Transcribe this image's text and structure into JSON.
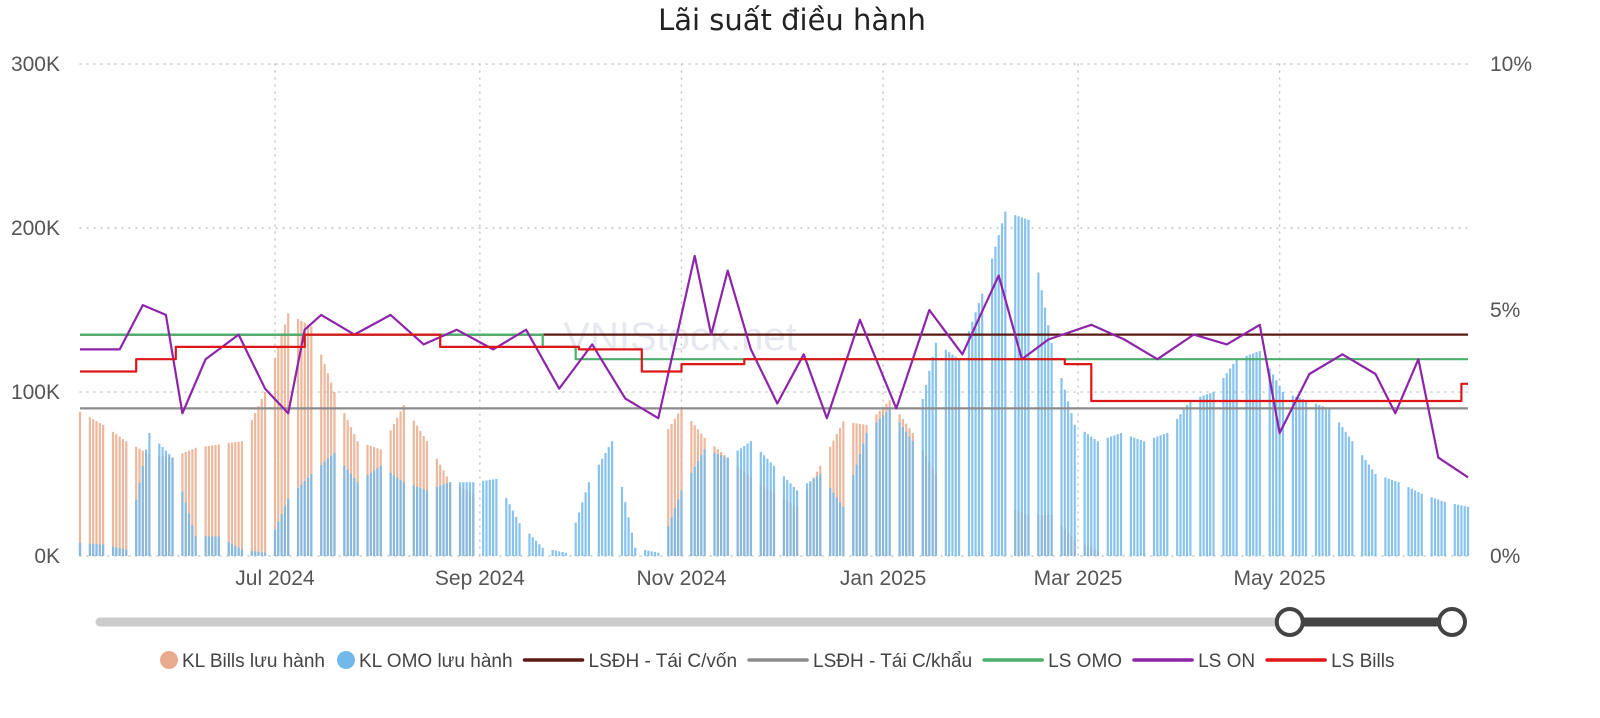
{
  "chart_data": {
    "type": "bar",
    "title": "Lãi suất điều hành",
    "watermark": "VNIStock.net",
    "y_left": {
      "ticks": [
        "0K",
        "100K",
        "200K",
        "300K"
      ],
      "ylim": [
        0,
        300000
      ]
    },
    "y_right": {
      "ticks": [
        "0%",
        "5%",
        "10%"
      ],
      "ylim": [
        0,
        10
      ]
    },
    "x_ticks": [
      {
        "date": "2024-07-01",
        "label": "Jul 2024"
      },
      {
        "date": "2024-09-01",
        "label": "Sep 2024"
      },
      {
        "date": "2024-11-01",
        "label": "Nov 2024"
      },
      {
        "date": "2025-01-01",
        "label": "Jan 2025"
      },
      {
        "date": "2025-03-01",
        "label": "Mar 2025"
      },
      {
        "date": "2025-05-01",
        "label": "May 2025"
      }
    ],
    "x_range": [
      "2024-05-03",
      "2025-06-27"
    ],
    "grid": true,
    "legend_position": "bottom",
    "colors": {
      "bills": "#e9ab8d",
      "omo": "#73b8ea",
      "lsdh_tai_cvon": "#5c1a12",
      "lsdh_tai_ckhau": "#8c8c8c",
      "ls_omo": "#4caf6a",
      "ls_on": "#8e24aa",
      "ls_bills": "#dd1717",
      "slider_track": "#cccccc",
      "slider_active": "#444444"
    },
    "bar_series": [
      {
        "name": "KL Bills lưu hành",
        "points": [
          [
            "2024-05-03",
            88000
          ],
          [
            "2024-05-10",
            80000
          ],
          [
            "2024-05-17",
            70000
          ],
          [
            "2024-05-24",
            62000
          ],
          [
            "2024-05-31",
            60000
          ],
          [
            "2024-06-07",
            66000
          ],
          [
            "2024-06-14",
            68000
          ],
          [
            "2024-06-21",
            70000
          ],
          [
            "2024-06-28",
            100000
          ],
          [
            "2024-07-05",
            148000
          ],
          [
            "2024-07-12",
            140000
          ],
          [
            "2024-07-19",
            100000
          ],
          [
            "2024-07-26",
            70000
          ],
          [
            "2024-08-02",
            65000
          ],
          [
            "2024-08-09",
            92000
          ],
          [
            "2024-08-16",
            70000
          ],
          [
            "2024-08-23",
            45000
          ],
          [
            "2024-08-30",
            38000
          ],
          [
            "2024-10-25",
            68000
          ],
          [
            "2024-11-01",
            90000
          ],
          [
            "2024-11-08",
            72000
          ],
          [
            "2024-11-15",
            60000
          ],
          [
            "2024-11-22",
            48000
          ],
          [
            "2024-11-29",
            38000
          ],
          [
            "2024-12-06",
            30000
          ],
          [
            "2024-12-13",
            55000
          ],
          [
            "2024-12-20",
            82000
          ],
          [
            "2024-12-27",
            80000
          ],
          [
            "2025-01-03",
            95000
          ],
          [
            "2025-01-10",
            75000
          ],
          [
            "2025-01-17",
            50000
          ],
          [
            "2025-02-07",
            30000
          ],
          [
            "2025-02-14",
            25000
          ],
          [
            "2025-02-21",
            25000
          ],
          [
            "2025-02-28",
            10000
          ],
          [
            "2025-03-07",
            3000
          ]
        ]
      },
      {
        "name": "KL OMO lưu hành",
        "points": [
          [
            "2024-05-03",
            8000
          ],
          [
            "2024-05-10",
            7000
          ],
          [
            "2024-05-17",
            4000
          ],
          [
            "2024-05-24",
            75000
          ],
          [
            "2024-05-31",
            60000
          ],
          [
            "2024-06-07",
            12000
          ],
          [
            "2024-06-14",
            12000
          ],
          [
            "2024-06-21",
            4000
          ],
          [
            "2024-06-28",
            2000
          ],
          [
            "2024-07-05",
            35000
          ],
          [
            "2024-07-12",
            50000
          ],
          [
            "2024-07-19",
            63000
          ],
          [
            "2024-07-26",
            45000
          ],
          [
            "2024-08-02",
            55000
          ],
          [
            "2024-08-09",
            45000
          ],
          [
            "2024-08-16",
            40000
          ],
          [
            "2024-08-23",
            45000
          ],
          [
            "2024-08-30",
            45000
          ],
          [
            "2024-09-06",
            47000
          ],
          [
            "2024-09-13",
            20000
          ],
          [
            "2024-09-20",
            5000
          ],
          [
            "2024-09-27",
            2000
          ],
          [
            "2024-10-04",
            45000
          ],
          [
            "2024-10-11",
            70000
          ],
          [
            "2024-10-18",
            5000
          ],
          [
            "2024-10-25",
            2000
          ],
          [
            "2024-11-01",
            40000
          ],
          [
            "2024-11-08",
            65000
          ],
          [
            "2024-11-15",
            60000
          ],
          [
            "2024-11-22",
            70000
          ],
          [
            "2024-11-29",
            55000
          ],
          [
            "2024-12-06",
            40000
          ],
          [
            "2024-12-13",
            50000
          ],
          [
            "2024-12-20",
            30000
          ],
          [
            "2024-12-27",
            75000
          ],
          [
            "2025-01-03",
            90000
          ],
          [
            "2025-01-10",
            70000
          ],
          [
            "2025-01-17",
            130000
          ],
          [
            "2025-01-24",
            120000
          ],
          [
            "2025-01-31",
            160000
          ],
          [
            "2025-02-07",
            210000
          ],
          [
            "2025-02-14",
            205000
          ],
          [
            "2025-02-21",
            130000
          ],
          [
            "2025-02-28",
            80000
          ],
          [
            "2025-03-07",
            70000
          ],
          [
            "2025-03-14",
            75000
          ],
          [
            "2025-03-21",
            70000
          ],
          [
            "2025-03-28",
            75000
          ],
          [
            "2025-04-04",
            95000
          ],
          [
            "2025-04-11",
            100000
          ],
          [
            "2025-04-18",
            120000
          ],
          [
            "2025-04-25",
            125000
          ],
          [
            "2025-05-02",
            100000
          ],
          [
            "2025-05-09",
            95000
          ],
          [
            "2025-05-16",
            90000
          ],
          [
            "2025-05-23",
            70000
          ],
          [
            "2025-05-30",
            50000
          ],
          [
            "2025-06-06",
            45000
          ],
          [
            "2025-06-13",
            38000
          ],
          [
            "2025-06-20",
            33000
          ],
          [
            "2025-06-27",
            30000
          ]
        ]
      }
    ],
    "line_series": [
      {
        "name": "LSĐH - Tái C/vốn",
        "points": [
          [
            "2024-05-03",
            4.5
          ],
          [
            "2025-06-27",
            4.5
          ]
        ]
      },
      {
        "name": "LSĐH - Tái C/khẩu",
        "points": [
          [
            "2024-05-03",
            3.0
          ],
          [
            "2025-06-27",
            3.0
          ]
        ]
      },
      {
        "name": "LS OMO",
        "step": true,
        "points": [
          [
            "2024-05-03",
            4.5
          ],
          [
            "2024-09-20",
            4.25
          ],
          [
            "2024-09-30",
            4.0
          ],
          [
            "2025-06-27",
            4.0
          ]
        ]
      },
      {
        "name": "LS ON",
        "points": [
          [
            "2024-05-03",
            4.2
          ],
          [
            "2024-05-15",
            4.2
          ],
          [
            "2024-05-22",
            5.1
          ],
          [
            "2024-05-29",
            4.9
          ],
          [
            "2024-06-03",
            2.9
          ],
          [
            "2024-06-10",
            4.0
          ],
          [
            "2024-06-20",
            4.5
          ],
          [
            "2024-06-28",
            3.4
          ],
          [
            "2024-07-05",
            2.9
          ],
          [
            "2024-07-10",
            4.6
          ],
          [
            "2024-07-15",
            4.9
          ],
          [
            "2024-07-25",
            4.5
          ],
          [
            "2024-08-05",
            4.9
          ],
          [
            "2024-08-15",
            4.3
          ],
          [
            "2024-08-25",
            4.6
          ],
          [
            "2024-09-05",
            4.2
          ],
          [
            "2024-09-15",
            4.6
          ],
          [
            "2024-09-25",
            3.4
          ],
          [
            "2024-10-05",
            4.3
          ],
          [
            "2024-10-15",
            3.2
          ],
          [
            "2024-10-25",
            2.8
          ],
          [
            "2024-11-05",
            6.1
          ],
          [
            "2024-11-10",
            4.5
          ],
          [
            "2024-11-15",
            5.8
          ],
          [
            "2024-11-22",
            4.2
          ],
          [
            "2024-11-30",
            3.1
          ],
          [
            "2024-12-08",
            4.1
          ],
          [
            "2024-12-15",
            2.8
          ],
          [
            "2024-12-25",
            4.8
          ],
          [
            "2025-01-05",
            3.0
          ],
          [
            "2025-01-15",
            5.0
          ],
          [
            "2025-01-25",
            4.1
          ],
          [
            "2025-02-05",
            5.7
          ],
          [
            "2025-02-12",
            4.0
          ],
          [
            "2025-02-20",
            4.4
          ],
          [
            "2025-03-05",
            4.7
          ],
          [
            "2025-03-15",
            4.4
          ],
          [
            "2025-03-25",
            4.0
          ],
          [
            "2025-04-05",
            4.5
          ],
          [
            "2025-04-15",
            4.3
          ],
          [
            "2025-04-25",
            4.7
          ],
          [
            "2025-05-01",
            2.5
          ],
          [
            "2025-05-10",
            3.7
          ],
          [
            "2025-05-20",
            4.1
          ],
          [
            "2025-05-30",
            3.7
          ],
          [
            "2025-06-05",
            2.9
          ],
          [
            "2025-06-12",
            4.0
          ],
          [
            "2025-06-18",
            2.0
          ],
          [
            "2025-06-27",
            1.6
          ]
        ]
      },
      {
        "name": "LS Bills",
        "step": true,
        "points": [
          [
            "2024-05-03",
            3.75
          ],
          [
            "2024-05-20",
            4.0
          ],
          [
            "2024-06-01",
            4.25
          ],
          [
            "2024-07-10",
            4.5
          ],
          [
            "2024-08-20",
            4.25
          ],
          [
            "2024-10-01",
            4.2
          ],
          [
            "2024-10-20",
            3.75
          ],
          [
            "2024-11-01",
            3.9
          ],
          [
            "2024-11-20",
            4.0
          ],
          [
            "2025-02-25",
            3.9
          ],
          [
            "2025-03-05",
            3.15
          ],
          [
            "2025-06-25",
            3.5
          ],
          [
            "2025-06-27",
            3.5
          ]
        ]
      }
    ]
  },
  "legend": {
    "items": [
      {
        "label": "KL Bills lưu hành",
        "kind": "circle",
        "color": "#e9ab8d"
      },
      {
        "label": "KL OMO lưu hành",
        "kind": "circle",
        "color": "#73b8ea"
      },
      {
        "label": "LSĐH - Tái C/vốn",
        "kind": "line",
        "color": "#5c1a12"
      },
      {
        "label": "LSĐH - Tái C/khẩu",
        "kind": "line",
        "color": "#8c8c8c"
      },
      {
        "label": "LS OMO",
        "kind": "line",
        "color": "#4caf6a"
      },
      {
        "label": "LS ON",
        "kind": "line",
        "color": "#8e24aa"
      },
      {
        "label": "LS Bills",
        "kind": "line",
        "color": "#dd1717"
      }
    ]
  },
  "range_slider": {
    "start_fraction": 0.88,
    "end_fraction": 1.0
  }
}
